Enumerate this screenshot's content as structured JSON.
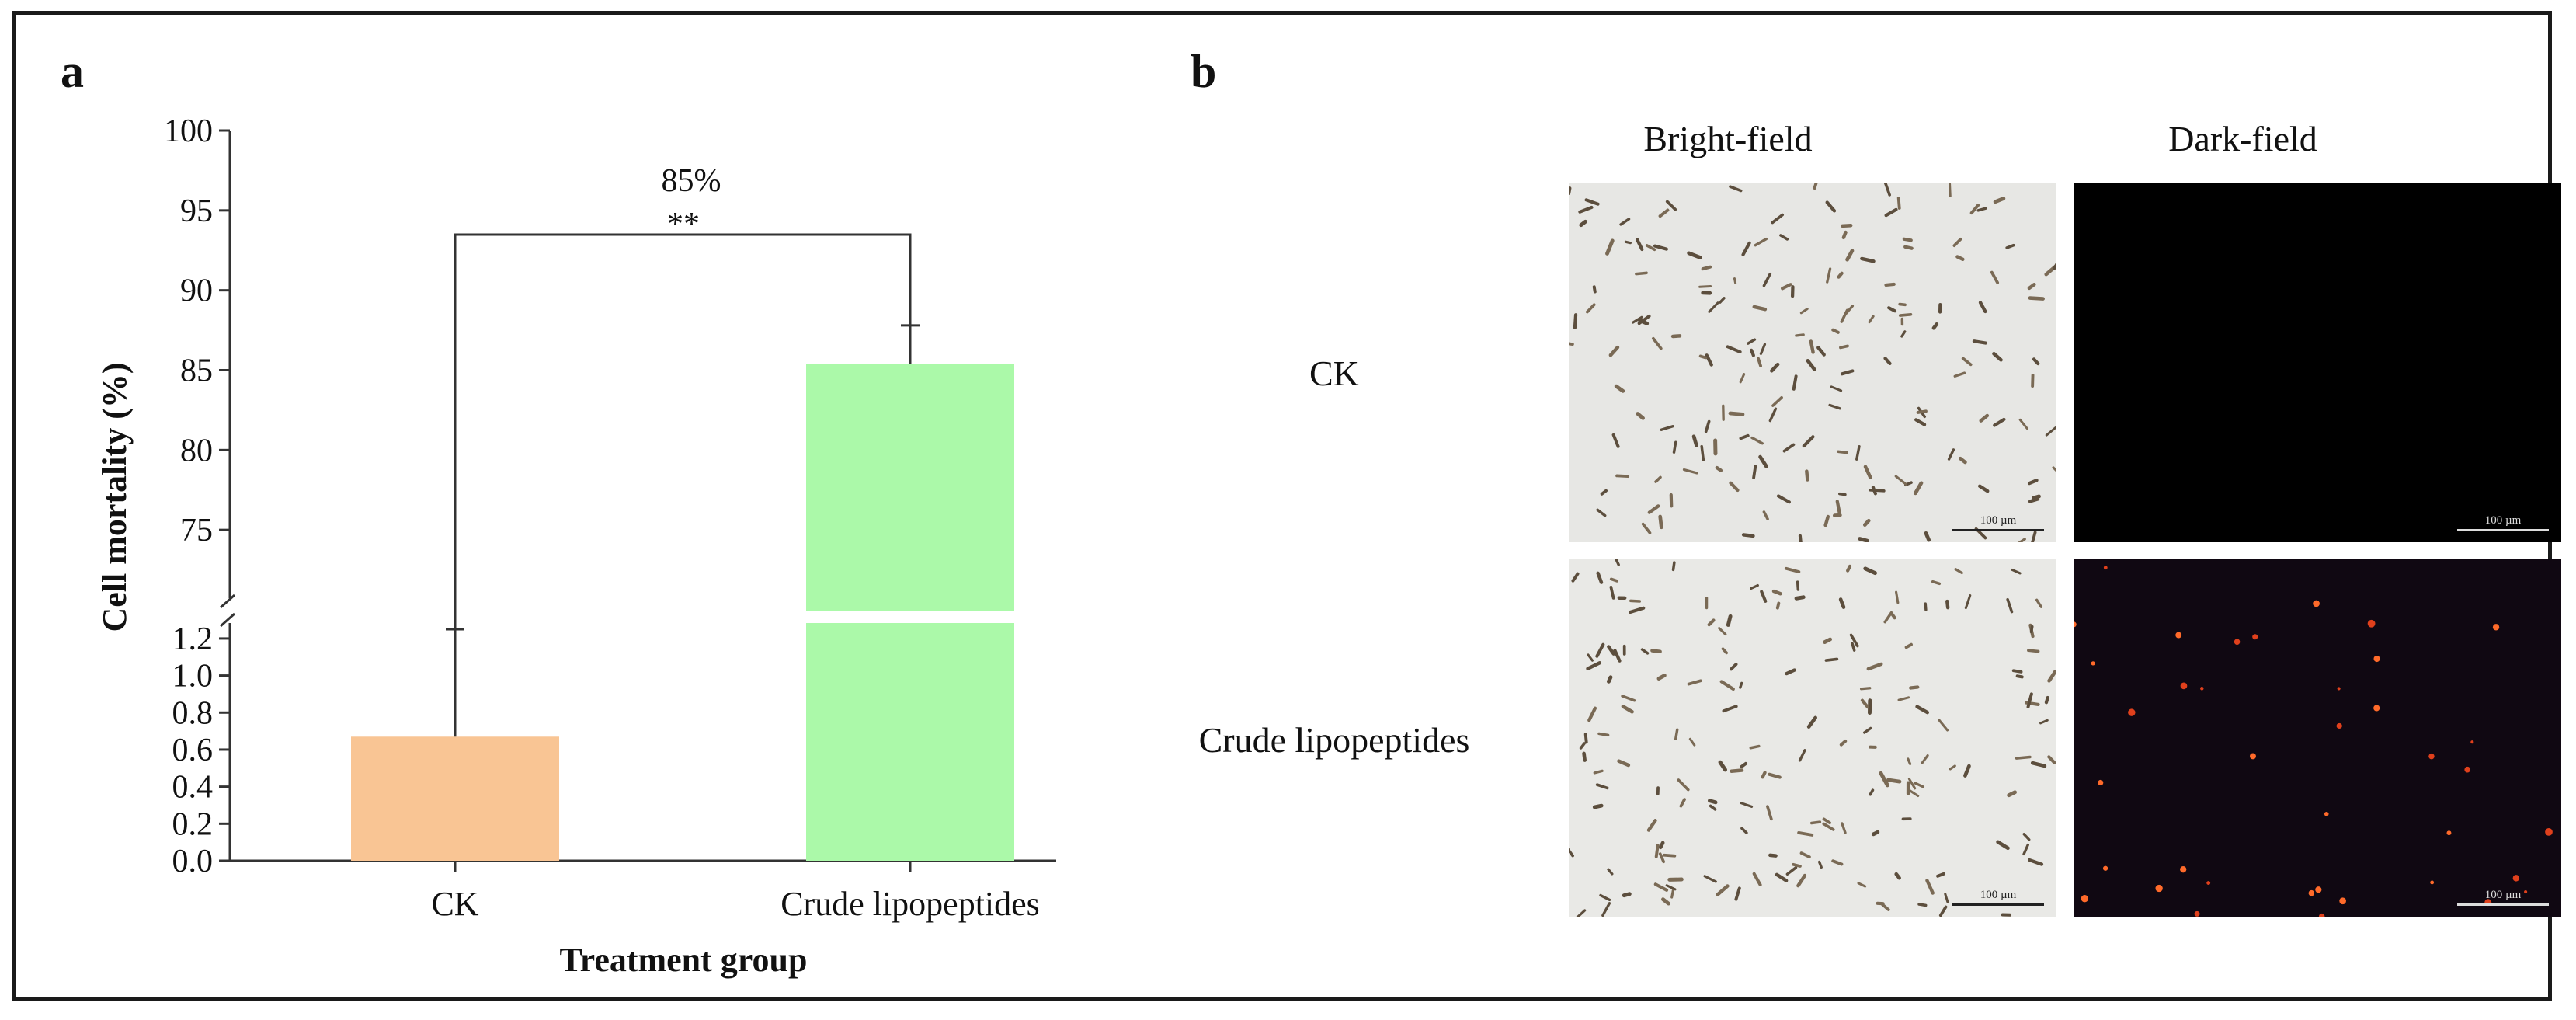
{
  "panels": {
    "a": {
      "label": "a"
    },
    "b": {
      "label": "b",
      "column_headers": [
        "Bright-field",
        "Dark-field"
      ],
      "row_labels": [
        "CK",
        "Crude lipopeptides"
      ],
      "scale_bar": "100 µm"
    }
  },
  "chart_data": {
    "type": "bar",
    "categories": [
      "CK",
      "Crude lipopeptides"
    ],
    "values": [
      0.67,
      85.4
    ],
    "error_bars": [
      0.58,
      2.4
    ],
    "bar_colors": [
      "#f9c594",
      "#abf9a9"
    ],
    "xlabel": "Treatment group",
    "ylabel": "Cell mortality (%)",
    "axis_break": true,
    "lower_segment": {
      "ylim": [
        0.0,
        1.25
      ],
      "ticks": [
        "0.0",
        "0.2",
        "0.4",
        "0.6",
        "0.8",
        "1.0",
        "1.2"
      ]
    },
    "upper_segment": {
      "ylim": [
        70,
        100
      ],
      "ticks": [
        "75",
        "80",
        "85",
        "90",
        "95",
        "100"
      ]
    },
    "annotation": {
      "percent_label": "85%",
      "significance": "**"
    },
    "grid": false,
    "legend": "none"
  }
}
